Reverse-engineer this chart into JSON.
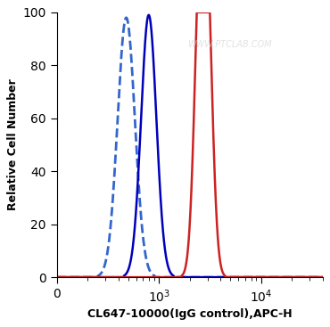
{
  "title": "",
  "xlabel": "CL647-10000(IgG control),APC-H",
  "ylabel": "Relative Cell Number",
  "ylim": [
    0,
    100
  ],
  "yticks": [
    0,
    20,
    40,
    60,
    80,
    100
  ],
  "watermark": "WWW.PTCLAB.COM",
  "background_color": "#ffffff",
  "plot_bg_color": "#ffffff",
  "xlim": [
    100,
    40000
  ],
  "curves": [
    {
      "type": "dashed_blue",
      "color": "#3366cc",
      "linestyle": "--",
      "linewidth": 2.0,
      "peaks": [
        {
          "peak_x_log": 2.68,
          "peak_y": 98,
          "sigma_log": 0.085
        }
      ]
    },
    {
      "type": "solid_blue",
      "color": "#0000bb",
      "linestyle": "-",
      "linewidth": 1.8,
      "peaks": [
        {
          "peak_x_log": 2.9,
          "peak_y": 99,
          "sigma_log": 0.075
        }
      ]
    },
    {
      "type": "solid_red",
      "color": "#cc2222",
      "linestyle": "-",
      "linewidth": 1.8,
      "peaks": [
        {
          "peak_x_log": 3.4,
          "peak_y": 95,
          "sigma_log": 0.055
        },
        {
          "peak_x_log": 3.47,
          "peak_y": 93,
          "sigma_log": 0.055
        }
      ]
    }
  ],
  "xtick_positions": [
    100,
    1000,
    10000
  ],
  "xtick_labels": [
    "0",
    "10$^3$",
    "10$^4$"
  ]
}
